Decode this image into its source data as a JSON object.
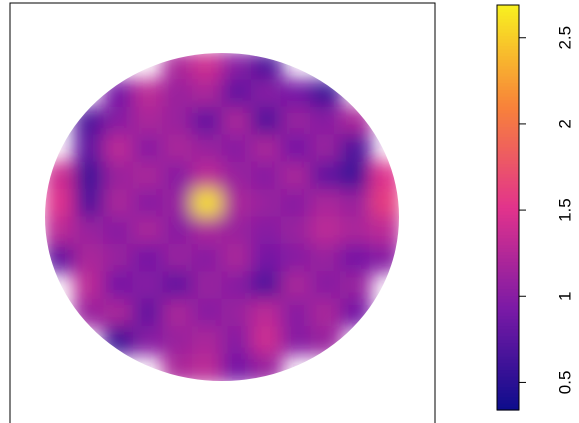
{
  "chart_data": {
    "type": "heatmap",
    "z": [
      [
        null,
        null,
        null,
        null,
        1.2,
        1.4,
        1.0,
        0.7,
        null,
        null,
        null,
        null
      ],
      [
        null,
        null,
        0.9,
        1.3,
        1.1,
        1.2,
        0.8,
        1.0,
        0.9,
        0.6,
        null,
        null
      ],
      [
        null,
        0.7,
        1.0,
        1.2,
        1.1,
        0.8,
        1.2,
        0.7,
        1.1,
        1.0,
        1.2,
        null
      ],
      [
        null,
        0.8,
        1.3,
        1.0,
        1.2,
        1.1,
        1.0,
        1.2,
        0.9,
        1.1,
        0.7,
        null
      ],
      [
        1.4,
        0.6,
        1.1,
        1.2,
        1.0,
        1.3,
        1.1,
        1.0,
        1.2,
        0.8,
        0.6,
        1.5
      ],
      [
        1.5,
        0.7,
        1.2,
        1.0,
        1.1,
        2.6,
        1.2,
        1.1,
        1.0,
        1.2,
        1.1,
        1.6
      ],
      [
        1.3,
        1.1,
        1.0,
        1.2,
        1.0,
        1.2,
        1.1,
        1.0,
        1.1,
        1.3,
        1.2,
        1.3
      ],
      [
        0.8,
        1.2,
        1.1,
        0.9,
        1.1,
        1.0,
        1.2,
        0.9,
        1.0,
        1.1,
        0.9,
        1.0
      ],
      [
        null,
        1.3,
        0.9,
        1.0,
        0.8,
        1.1,
        1.0,
        0.7,
        1.2,
        1.0,
        1.1,
        null
      ],
      [
        null,
        1.1,
        1.2,
        0.8,
        1.2,
        1.0,
        1.1,
        1.3,
        1.0,
        1.2,
        0.9,
        null
      ],
      [
        null,
        null,
        0.6,
        1.0,
        1.1,
        1.2,
        1.0,
        1.4,
        1.0,
        1.1,
        null,
        null
      ],
      [
        null,
        null,
        null,
        null,
        1.2,
        1.3,
        0.9,
        1.1,
        null,
        null,
        null,
        null
      ]
    ],
    "clim": [
      0.34,
      2.69
    ],
    "cticks": [
      0.5,
      1,
      1.5,
      2,
      2.5
    ],
    "colors": [
      "#0c0c8c",
      "#7a1aa6",
      "#e2338c",
      "#f8823a",
      "#f8f020"
    ]
  }
}
